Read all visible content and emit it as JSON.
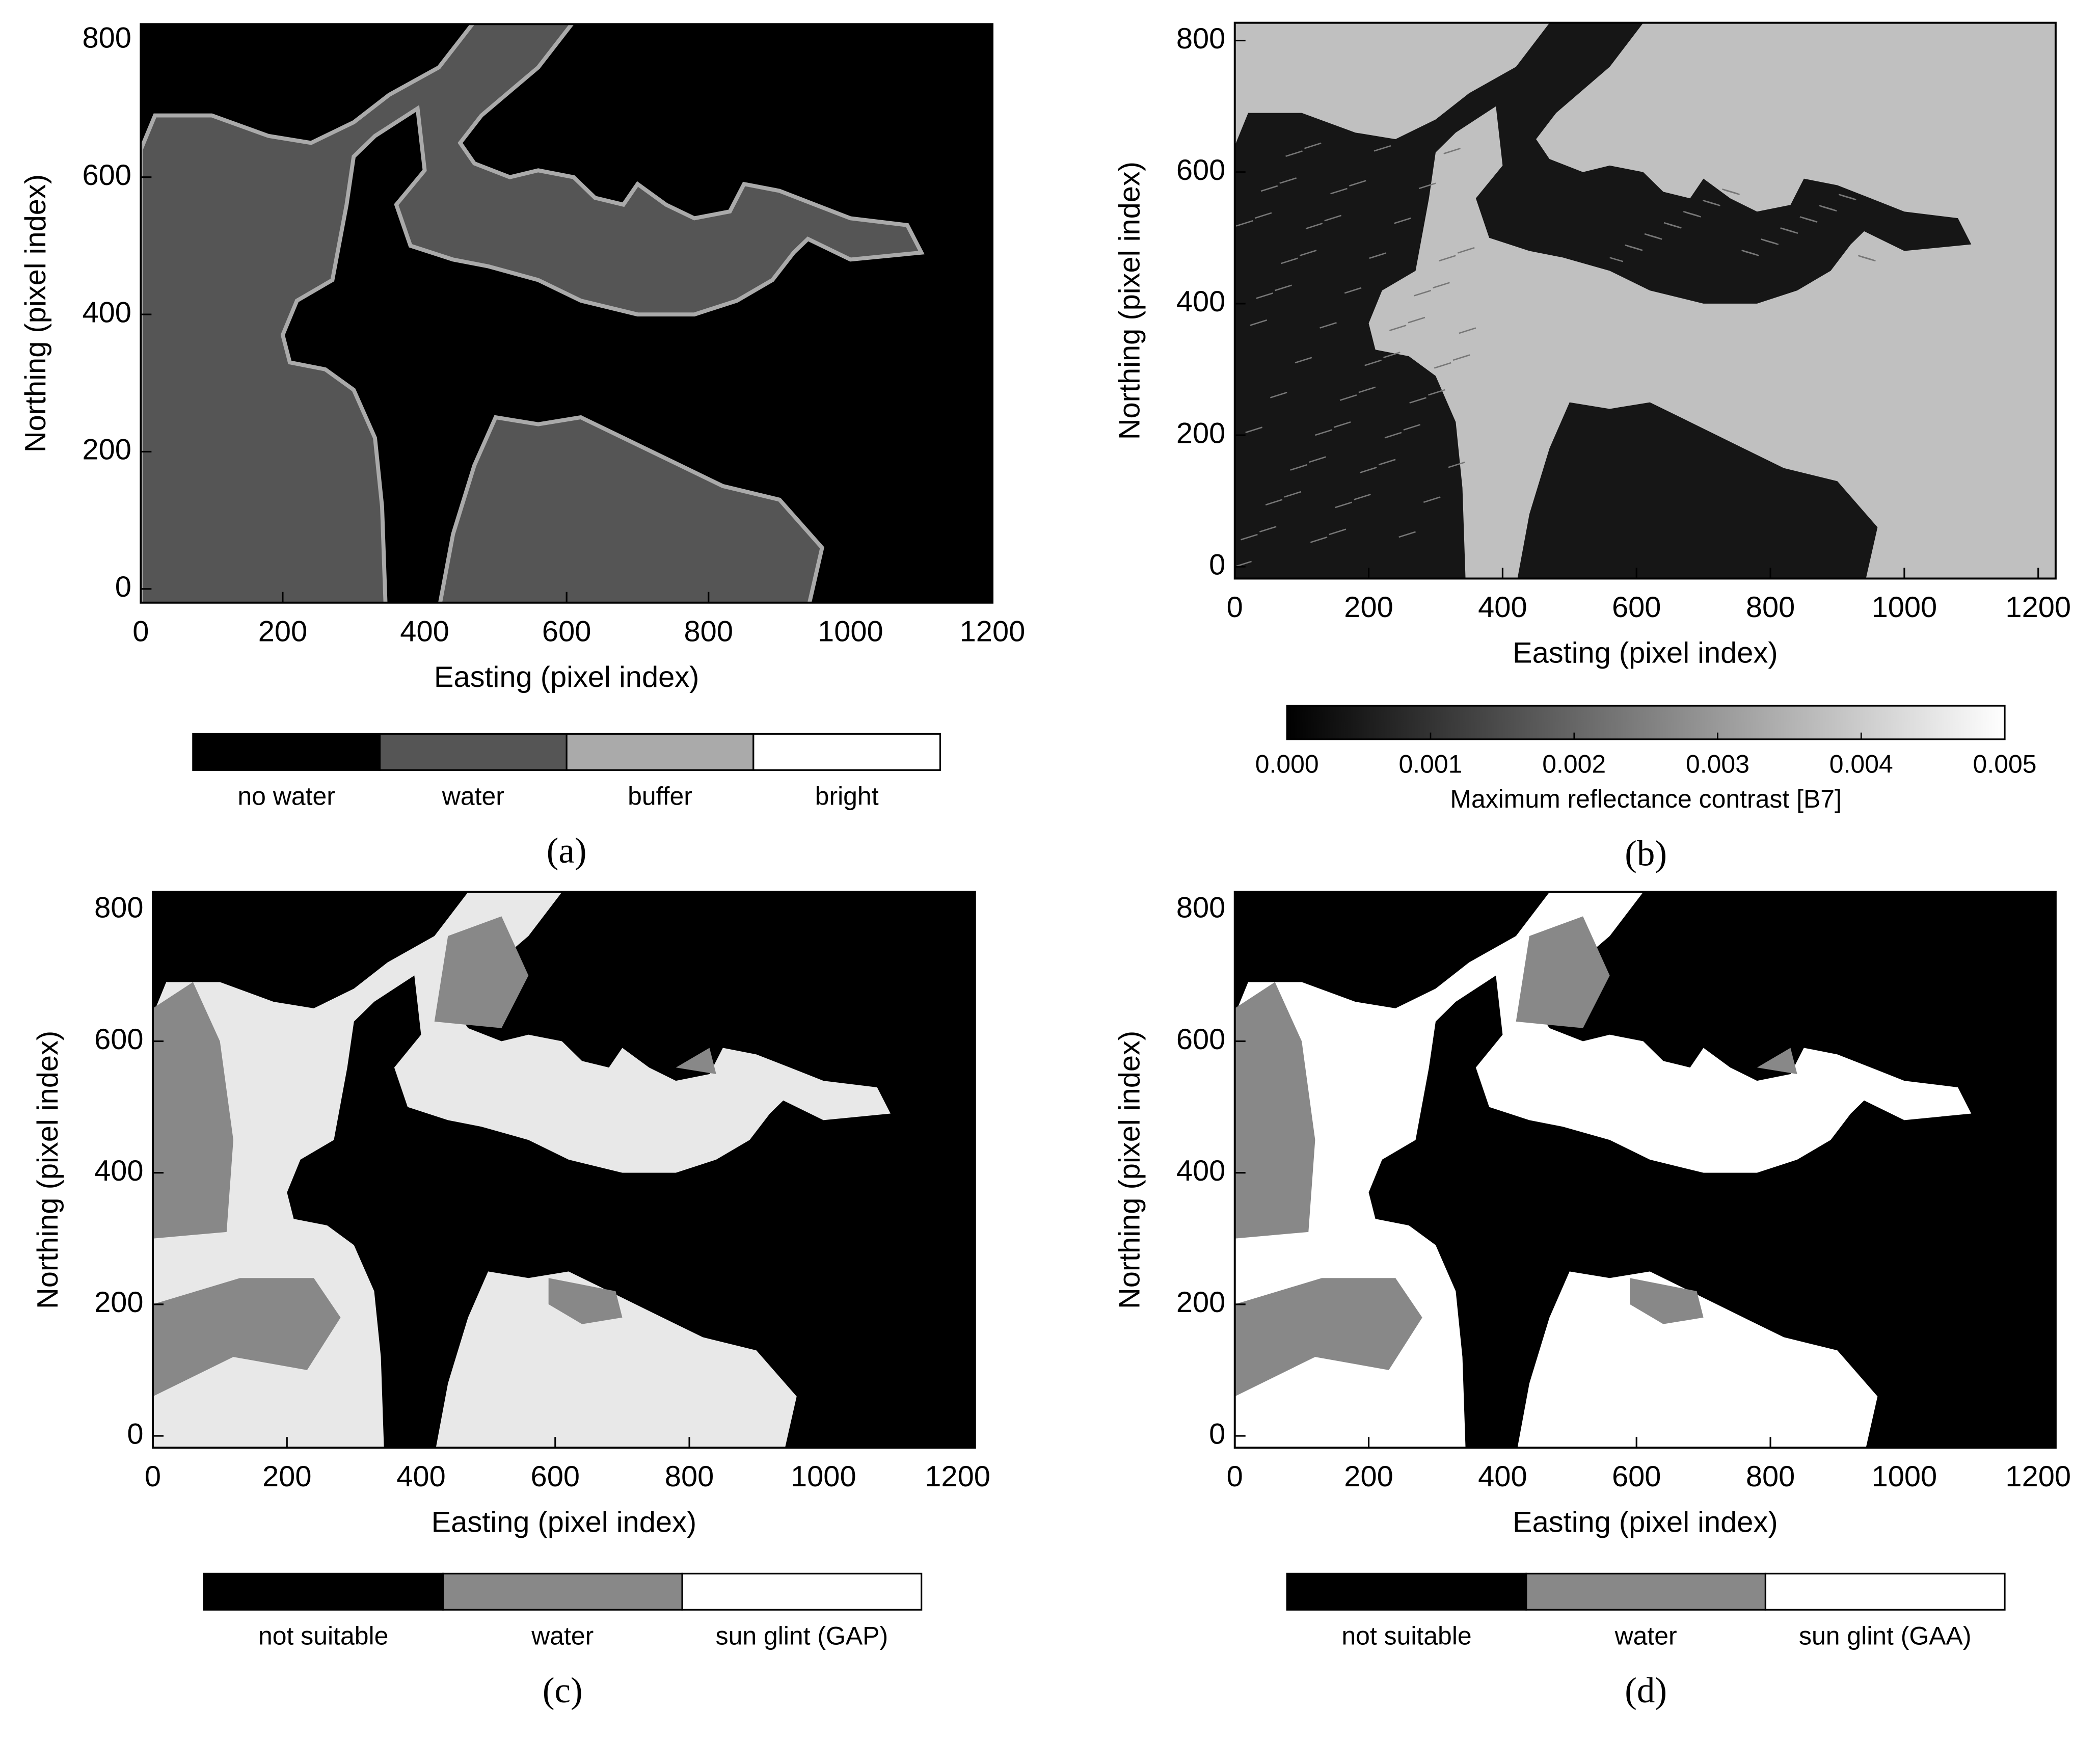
{
  "chart_data": [
    {
      "type": "image",
      "panel_label": "(a)",
      "x_label": "Easting (pixel index)",
      "y_label": "Northing (pixel index)",
      "xlim": [
        0,
        1200
      ],
      "ylim": [
        -20,
        823
      ],
      "xticks": [
        0,
        200,
        400,
        600,
        800,
        1000,
        1200
      ],
      "yticks": [
        0,
        200,
        400,
        600,
        800
      ],
      "legend": {
        "categories": [
          "no water",
          "water",
          "buffer",
          "bright"
        ],
        "colors": [
          "#000000",
          "#555555",
          "#aaaaaa",
          "#ffffff"
        ]
      }
    },
    {
      "type": "image",
      "panel_label": "(b)",
      "x_label": "Easting (pixel index)",
      "y_label": "Northing (pixel index)",
      "xlim": [
        0,
        1226
      ],
      "ylim": [
        -18,
        827
      ],
      "xticks": [
        0,
        200,
        400,
        600,
        800,
        1000,
        1200
      ],
      "yticks": [
        0,
        200,
        400,
        600,
        800
      ],
      "colorbar": {
        "label": "Maximum reflectance contrast [B7]",
        "lim": [
          0,
          0.005
        ],
        "colors": [
          "#000000",
          "#ffffff"
        ],
        "ticks": [
          {
            "value": 0,
            "label": "0.000"
          },
          0.001,
          0.002,
          0.003,
          0.004,
          0.005
        ]
      }
    },
    {
      "type": "image",
      "panel_label": "(c)",
      "x_label": "Easting (pixel index)",
      "y_label": "Northing (pixel index)",
      "xlim": [
        0,
        1226
      ],
      "ylim": [
        -18,
        827
      ],
      "xticks": [
        0,
        200,
        400,
        600,
        800,
        1000,
        1200
      ],
      "yticks": [
        0,
        200,
        400,
        600,
        800
      ],
      "legend": {
        "categories": [
          "not suitable",
          "water",
          "sun glint (GAP)"
        ],
        "colors": [
          "#000000",
          "#888888",
          "#ffffff"
        ]
      }
    },
    {
      "type": "image",
      "panel_label": "(d)",
      "x_label": "Easting (pixel index)",
      "y_label": "Northing (pixel index)",
      "xlim": [
        0,
        1226
      ],
      "ylim": [
        -18,
        827
      ],
      "xticks": [
        0,
        200,
        400,
        600,
        800,
        1000,
        1200
      ],
      "yticks": [
        0,
        200,
        400,
        600,
        800
      ],
      "legend": {
        "categories": [
          "not suitable",
          "water",
          "sun glint (GAA)"
        ],
        "colors": [
          "#000000",
          "#888888",
          "#ffffff"
        ]
      }
    }
  ]
}
